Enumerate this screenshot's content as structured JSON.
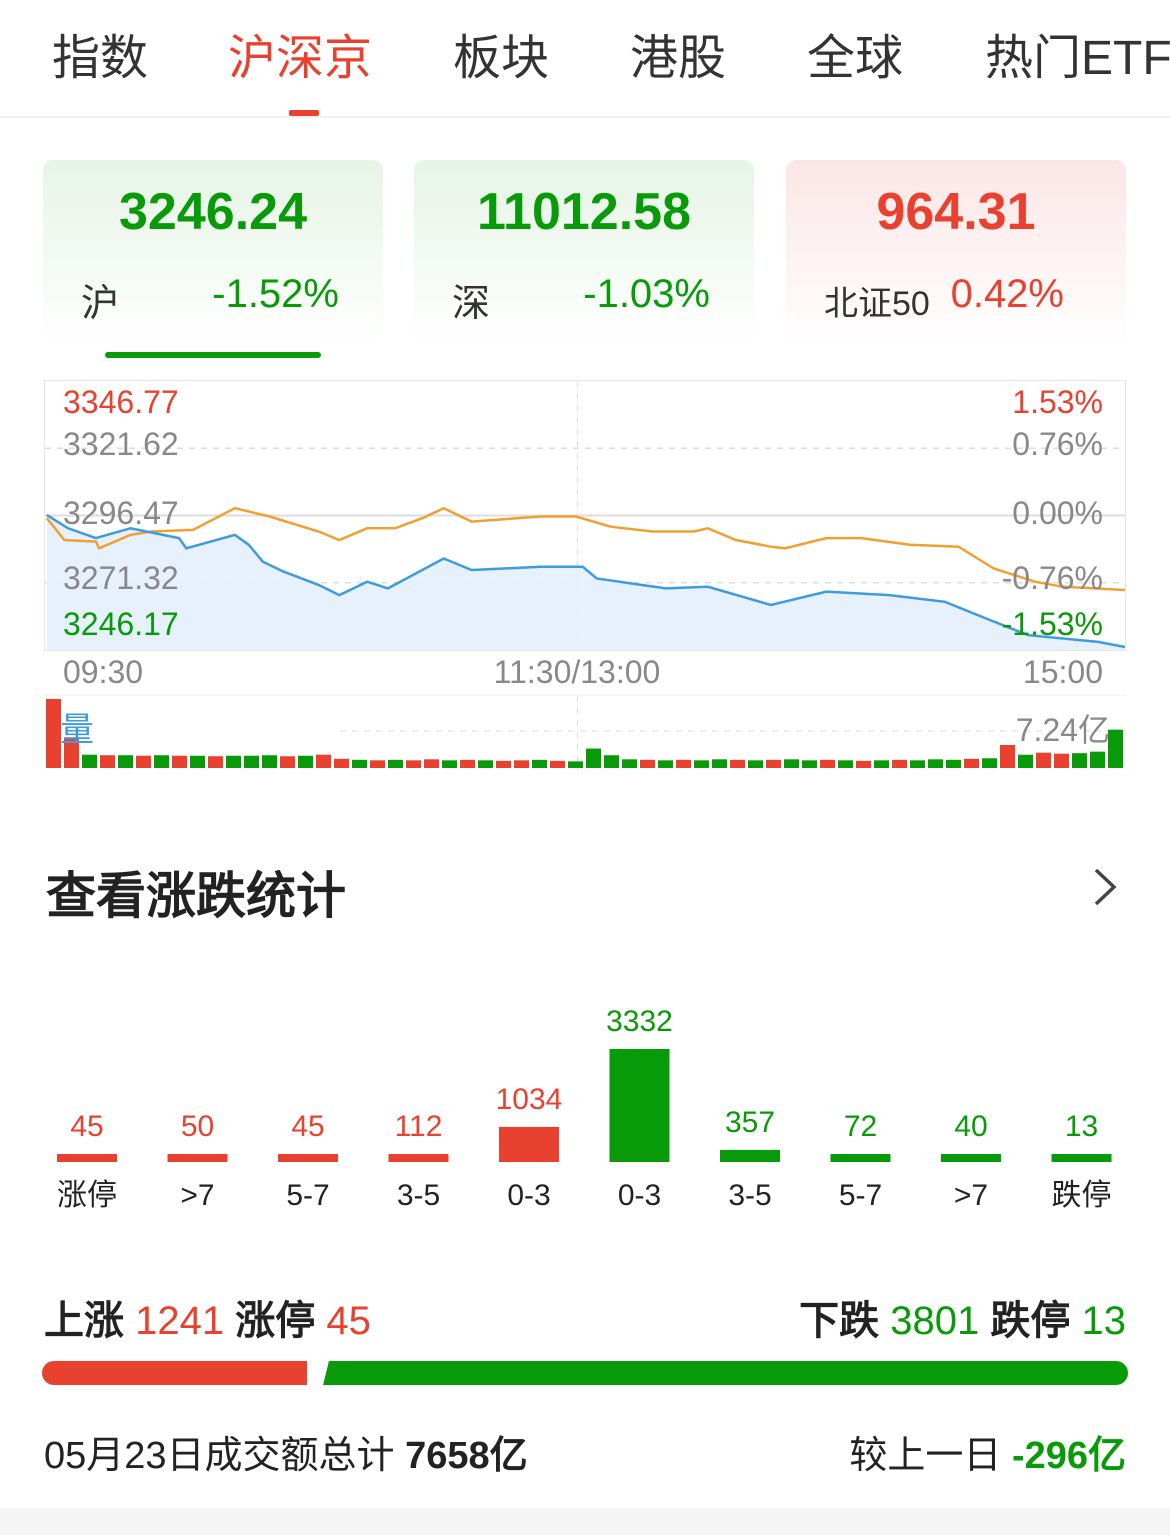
{
  "tabs": [
    {
      "label": "指数"
    },
    {
      "label": "沪深京",
      "active": true
    },
    {
      "label": "板块"
    },
    {
      "label": "港股"
    },
    {
      "label": "全球"
    },
    {
      "label": "热门ETF"
    }
  ],
  "cards": [
    {
      "value": "3246.24",
      "name": "沪",
      "change": "-1.52%",
      "trend": "down",
      "selected": true
    },
    {
      "value": "11012.58",
      "name": "深",
      "change": "-1.03%",
      "trend": "down"
    },
    {
      "value": "964.31",
      "name": "北证50",
      "change": "0.42%",
      "trend": "up"
    }
  ],
  "colors": {
    "up": "#e8412f",
    "down": "#089a08",
    "price_line": "#3d9be0",
    "avg_line": "#f0a030",
    "fill": "#e3f0fc"
  },
  "intraday": {
    "y_labels_left": [
      "3346.77",
      "3321.62",
      "3296.47",
      "3271.32",
      "3246.17"
    ],
    "y_labels_right": [
      "1.53%",
      "0.76%",
      "0.00%",
      "-0.76%",
      "-1.53%"
    ],
    "ylim": [
      3246.17,
      3346.77
    ],
    "prev_close": 3296.47,
    "x_labels": [
      "09:30",
      "11:30/13:00",
      "15:00"
    ],
    "minutes_total": 240,
    "price": [
      [
        0.4,
        3296.7
      ],
      [
        5.1,
        3291.7
      ],
      [
        11.3,
        3288.0
      ],
      [
        19,
        3291.7
      ],
      [
        29.8,
        3288.0
      ],
      [
        31.4,
        3284.2
      ],
      [
        42.2,
        3289.2
      ],
      [
        45.3,
        3285.5
      ],
      [
        48.4,
        3279.2
      ],
      [
        53,
        3275.5
      ],
      [
        60.8,
        3270.5
      ],
      [
        65.4,
        3266.7
      ],
      [
        71.6,
        3271.7
      ],
      [
        76.2,
        3269.2
      ],
      [
        88.6,
        3280.4
      ],
      [
        94.8,
        3276.1
      ],
      [
        110.2,
        3277.3
      ],
      [
        119.5,
        3277.3
      ],
      [
        122.6,
        3272.9
      ],
      [
        138,
        3269.2
      ],
      [
        147.3,
        3269.8
      ],
      [
        161.3,
        3263.0
      ],
      [
        173.6,
        3268.0
      ],
      [
        187.6,
        3266.7
      ],
      [
        200,
        3264.2
      ],
      [
        209.2,
        3257.9
      ],
      [
        218.5,
        3251.7
      ],
      [
        234,
        3249.2
      ],
      [
        240,
        3247.3
      ]
    ],
    "avg": [
      [
        0.4,
        3295.5
      ],
      [
        4.3,
        3287.3
      ],
      [
        11.3,
        3286.7
      ],
      [
        12,
        3284.2
      ],
      [
        19,
        3289.2
      ],
      [
        23.6,
        3290.5
      ],
      [
        32.9,
        3291.1
      ],
      [
        42.2,
        3299.2
      ],
      [
        49.9,
        3296.1
      ],
      [
        60.8,
        3290.5
      ],
      [
        65.4,
        3287.3
      ],
      [
        71.6,
        3291.7
      ],
      [
        77.8,
        3291.7
      ],
      [
        83.9,
        3295.5
      ],
      [
        88.6,
        3299.2
      ],
      [
        94.8,
        3294.2
      ],
      [
        110.2,
        3296.1
      ],
      [
        118,
        3296.1
      ],
      [
        125.7,
        3292.3
      ],
      [
        135,
        3290.5
      ],
      [
        144.2,
        3290.5
      ],
      [
        147.3,
        3291.7
      ],
      [
        153.5,
        3287.3
      ],
      [
        161.3,
        3284.8
      ],
      [
        164.4,
        3284.2
      ],
      [
        173.6,
        3288.0
      ],
      [
        181.4,
        3288.0
      ],
      [
        192.2,
        3285.5
      ],
      [
        203,
        3284.8
      ],
      [
        210.8,
        3276.7
      ],
      [
        220,
        3271.7
      ],
      [
        226.2,
        3269.8
      ],
      [
        240,
        3268.6
      ]
    ]
  },
  "volume": {
    "label": "量",
    "max_label": "7.24亿",
    "ref_value": 7.24,
    "values": [
      13.5,
      6.0,
      2.6,
      2.5,
      2.5,
      2.4,
      2.5,
      2.4,
      2.4,
      2.3,
      2.4,
      2.4,
      2.5,
      2.3,
      2.4,
      2.6,
      1.8,
      1.6,
      1.5,
      1.6,
      1.5,
      1.7,
      1.5,
      1.6,
      1.5,
      1.4,
      1.5,
      1.6,
      1.4,
      1.3,
      3.8,
      2.5,
      1.7,
      1.6,
      1.5,
      1.6,
      1.5,
      1.7,
      1.6,
      1.5,
      1.6,
      1.7,
      1.5,
      1.6,
      1.5,
      1.4,
      1.5,
      1.6,
      1.5,
      1.7,
      1.6,
      1.8,
      1.9,
      4.5,
      2.6,
      3.0,
      2.8,
      2.9,
      3.2,
      7.5
    ],
    "directions": "rrgrgrgrgrgggrgrrgrgrrgrgrrgrggggrgrggrgrggrgrgrgggrgrgrrgg"
  },
  "stats": {
    "title": "查看涨跌统计",
    "chart_data": {
      "type": "bar",
      "categories": [
        "涨停",
        ">7",
        "5-7",
        "3-5",
        "0-3",
        "0-3",
        "3-5",
        "5-7",
        ">7",
        "跌停"
      ],
      "values": [
        45,
        50,
        45,
        112,
        1034,
        3332,
        357,
        72,
        40,
        13
      ],
      "directions": [
        "up",
        "up",
        "up",
        "up",
        "up",
        "down",
        "down",
        "down",
        "down",
        "down"
      ]
    },
    "rise_label": "上涨",
    "rise_count": "1241",
    "limit_up_label": "涨停",
    "limit_up_count": "45",
    "fall_label": "下跌",
    "fall_count": "3801",
    "limit_down_label": "跌停",
    "limit_down_count": "13",
    "rise_ratio": 0.246,
    "turnover_text": "05月23日成交额总计",
    "turnover_value": "7658亿",
    "compare_label": "较上一日",
    "compare_value": "-296亿"
  }
}
